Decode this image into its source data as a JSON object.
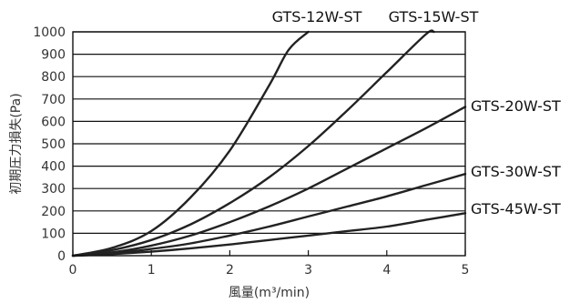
{
  "chart_data": {
    "type": "line",
    "title": "",
    "xlabel": "風量(m³/min)",
    "ylabel": "初期圧力損失(Pa)",
    "xlim": [
      0,
      5
    ],
    "ylim": [
      0,
      1000
    ],
    "xticks": [
      "0",
      "1",
      "2",
      "3",
      "4",
      "5"
    ],
    "yticks": [
      "0",
      "100",
      "200",
      "300",
      "400",
      "500",
      "600",
      "700",
      "800",
      "900",
      "1000"
    ],
    "grid": "horizontal",
    "colors": {
      "line": "#222222",
      "grid": "#111111",
      "text": "#333333"
    },
    "series": [
      {
        "name": "GTS-12W-ST",
        "x": [
          0,
          0.5,
          1.0,
          1.5,
          2.0,
          2.5,
          2.75,
          3.0
        ],
        "y": [
          0,
          35,
          110,
          260,
          470,
          760,
          920,
          1000
        ]
      },
      {
        "name": "GTS-15W-ST",
        "x": [
          0,
          0.5,
          1.0,
          1.5,
          2.0,
          2.5,
          3.0,
          3.5,
          4.0,
          4.5,
          4.6
        ],
        "y": [
          0,
          25,
          70,
          140,
          235,
          350,
          490,
          650,
          820,
          990,
          1000
        ]
      },
      {
        "name": "GTS-20W-ST",
        "x": [
          0,
          0.5,
          1.0,
          1.5,
          2.0,
          2.5,
          3.0,
          3.5,
          4.0,
          4.5,
          5.0
        ],
        "y": [
          0,
          15,
          45,
          90,
          150,
          220,
          300,
          390,
          480,
          570,
          665
        ]
      },
      {
        "name": "GTS-30W-ST",
        "x": [
          0,
          0.5,
          1.0,
          1.5,
          2.0,
          2.5,
          3.0,
          3.5,
          4.0,
          4.5,
          5.0
        ],
        "y": [
          0,
          10,
          30,
          55,
          90,
          130,
          175,
          220,
          265,
          315,
          365
        ]
      },
      {
        "name": "GTS-45W-ST",
        "x": [
          0,
          0.5,
          1.0,
          1.5,
          2.0,
          2.5,
          3.0,
          3.5,
          4.0,
          4.5,
          5.0
        ],
        "y": [
          0,
          7,
          18,
          33,
          50,
          70,
          90,
          110,
          130,
          160,
          190
        ]
      }
    ]
  }
}
